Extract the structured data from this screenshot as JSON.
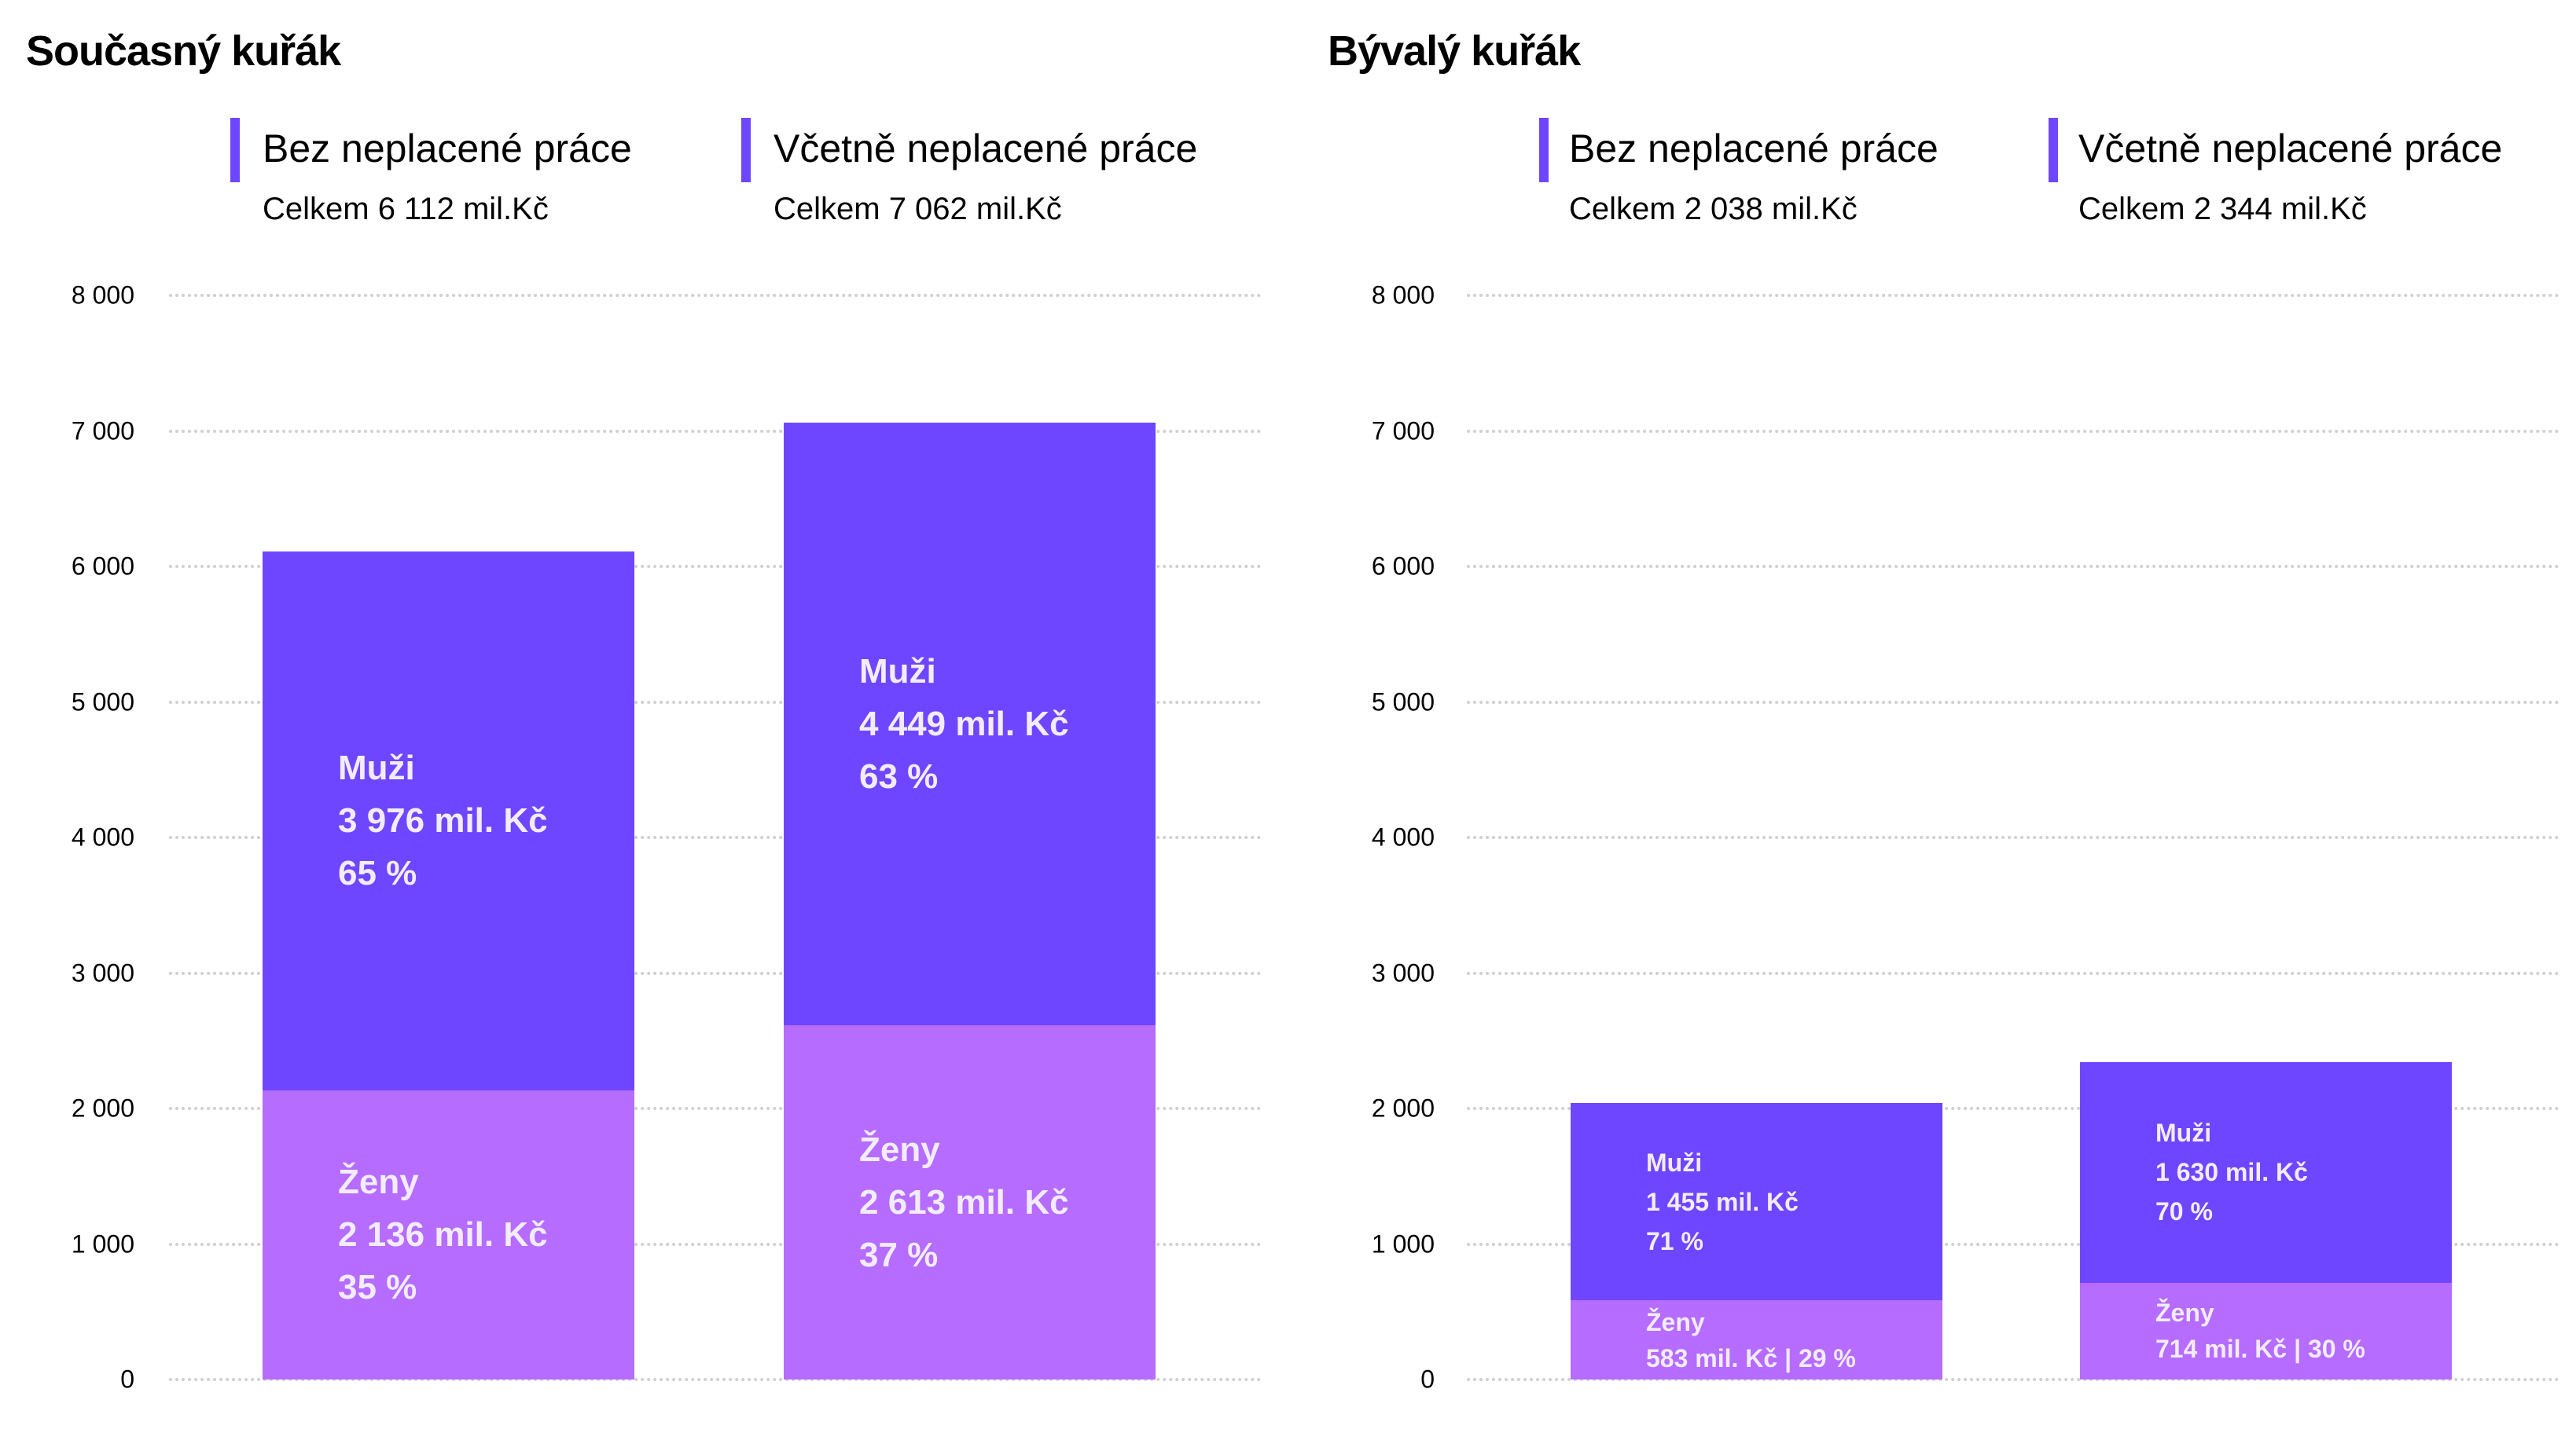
{
  "colors": {
    "muzi": "#6f46ff",
    "zeny": "#b56cff",
    "legend_marker": "#6f46ff",
    "label_text": "#f2ecff"
  },
  "chart_data": [
    {
      "type": "bar",
      "stacked": true,
      "title": "Současný kuřák",
      "ylim": [
        0,
        8000
      ],
      "yticks": [
        "0",
        "1 000",
        "2 000",
        "3 000",
        "4 000",
        "5 000",
        "6 000",
        "7 000",
        "8 000"
      ],
      "grid": true,
      "categories": [
        {
          "label": "Bez neplacené práce",
          "total": "Celkem 6 112 mil.Kč"
        },
        {
          "label": "Včetně neplacené práce",
          "total": "Celkem 7 062 mil.Kč"
        }
      ],
      "series": [
        {
          "name": "Ženy",
          "values": [
            2136,
            2613
          ],
          "value_labels": [
            "2 136 mil. Kč",
            "2 613 mil. Kč"
          ],
          "percent_labels": [
            "35 %",
            "37 %"
          ]
        },
        {
          "name": "Muži",
          "values": [
            3976,
            4449
          ],
          "value_labels": [
            "3 976 mil. Kč",
            "4 449 mil. Kč"
          ],
          "percent_labels": [
            "65 %",
            "63 %"
          ]
        }
      ]
    },
    {
      "type": "bar",
      "stacked": true,
      "title": "Bývalý kuřák",
      "ylim": [
        0,
        8000
      ],
      "yticks": [
        "0",
        "1 000",
        "2 000",
        "3 000",
        "4 000",
        "5 000",
        "6 000",
        "7 000",
        "8 000"
      ],
      "grid": true,
      "categories": [
        {
          "label": "Bez neplacené práce",
          "total": "Celkem 2 038 mil.Kč"
        },
        {
          "label": "Včetně neplacené práce",
          "total": "Celkem 2 344 mil.Kč"
        }
      ],
      "series": [
        {
          "name": "Ženy",
          "values": [
            583,
            714
          ],
          "value_labels": [
            "583 mil. Kč | 29 %",
            "714 mil. Kč | 30 %"
          ],
          "percent_labels": [
            "",
            ""
          ]
        },
        {
          "name": "Muži",
          "values": [
            1455,
            1630
          ],
          "value_labels": [
            "1 455 mil. Kč",
            "1 630 mil. Kč"
          ],
          "percent_labels": [
            "71 %",
            "70 %"
          ]
        }
      ]
    }
  ]
}
